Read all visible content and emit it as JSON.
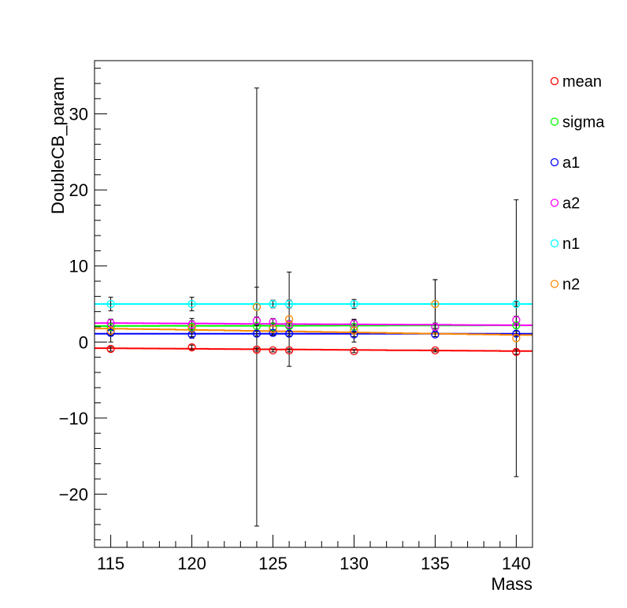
{
  "chart_data": {
    "type": "scatter",
    "title": "",
    "xlabel": "Mass",
    "ylabel": "DoubleCB_param",
    "xlim": [
      114,
      141
    ],
    "ylim": [
      -27,
      37
    ],
    "x_ticks": [
      115,
      120,
      125,
      130,
      135,
      140
    ],
    "y_ticks": [
      -20,
      -10,
      0,
      10,
      20,
      30
    ],
    "legend": {
      "placement": "right"
    },
    "masses": [
      115,
      120,
      124,
      125,
      126,
      130,
      135,
      140
    ],
    "series": [
      {
        "name": "mean",
        "color": "#ff0000",
        "points": [
          {
            "x": 115,
            "y": -0.9,
            "err": 0.3
          },
          {
            "x": 120,
            "y": -0.7,
            "err": 0.3
          },
          {
            "x": 124,
            "y": -1.0,
            "err": 0.2
          },
          {
            "x": 125,
            "y": -1.1,
            "err": 0.2
          },
          {
            "x": 126,
            "y": -1.1,
            "err": 0.2
          },
          {
            "x": 130,
            "y": -1.2,
            "err": 0.2
          },
          {
            "x": 135,
            "y": -1.1,
            "err": 0.2
          },
          {
            "x": 140,
            "y": -1.3,
            "err": 0.3
          }
        ],
        "fit": [
          [
            114,
            -0.8
          ],
          [
            141,
            -1.2
          ]
        ]
      },
      {
        "name": "sigma",
        "color": "#00ff00",
        "points": [
          {
            "x": 115,
            "y": 2.0,
            "err": 0.4
          },
          {
            "x": 120,
            "y": 2.0,
            "err": 0.4
          },
          {
            "x": 124,
            "y": 2.1,
            "err": 0.4
          },
          {
            "x": 125,
            "y": 2.0,
            "err": 0.4
          },
          {
            "x": 126,
            "y": 2.1,
            "err": 0.4
          },
          {
            "x": 130,
            "y": 2.0,
            "err": 0.4
          },
          {
            "x": 135,
            "y": 2.0,
            "err": 0.4
          },
          {
            "x": 140,
            "y": 2.2,
            "err": 0.4
          }
        ],
        "fit": [
          [
            114,
            2.1
          ],
          [
            141,
            2.2
          ]
        ]
      },
      {
        "name": "a1",
        "color": "#0000ff",
        "points": [
          {
            "x": 115,
            "y": 1.2,
            "err": 0.3
          },
          {
            "x": 120,
            "y": 1.0,
            "err": 0.3
          },
          {
            "x": 124,
            "y": 1.1,
            "err": 0.3
          },
          {
            "x": 125,
            "y": 1.2,
            "err": 0.3
          },
          {
            "x": 126,
            "y": 1.1,
            "err": 0.3
          },
          {
            "x": 130,
            "y": 1.0,
            "err": 0.3
          },
          {
            "x": 135,
            "y": 1.0,
            "err": 0.3
          },
          {
            "x": 140,
            "y": 1.1,
            "err": 0.3
          }
        ],
        "fit": [
          [
            114,
            1.1
          ],
          [
            141,
            1.1
          ]
        ]
      },
      {
        "name": "a2",
        "color": "#ff00ff",
        "points": [
          {
            "x": 115,
            "y": 2.5,
            "err": 0.5
          },
          {
            "x": 120,
            "y": 2.3,
            "err": 0.5
          },
          {
            "x": 124,
            "y": 2.8,
            "err": 0.5
          },
          {
            "x": 125,
            "y": 2.6,
            "err": 0.5
          },
          {
            "x": 126,
            "y": 2.3,
            "err": 0.5
          },
          {
            "x": 130,
            "y": 2.4,
            "err": 0.5
          },
          {
            "x": 135,
            "y": 2.0,
            "err": 0.5
          },
          {
            "x": 140,
            "y": 2.9,
            "err": 0.5
          }
        ],
        "fit": [
          [
            114,
            2.5
          ],
          [
            141,
            2.2
          ]
        ]
      },
      {
        "name": "n1",
        "color": "#00ffff",
        "points": [
          {
            "x": 115,
            "y": 5.0,
            "err": 0.9
          },
          {
            "x": 120,
            "y": 5.0,
            "err": 0.9
          },
          {
            "x": 124,
            "y": 4.7,
            "err": 2.5
          },
          {
            "x": 125,
            "y": 5.0,
            "err": 0.5
          },
          {
            "x": 126,
            "y": 5.0,
            "err": 0.5
          },
          {
            "x": 130,
            "y": 5.0,
            "err": 0.6
          },
          {
            "x": 135,
            "y": 5.0,
            "err": 3.2
          },
          {
            "x": 140,
            "y": 5.0,
            "err": 0.3
          }
        ],
        "fit": [
          [
            114,
            5.0
          ],
          [
            141,
            5.0
          ]
        ]
      },
      {
        "name": "n2",
        "color": "#ff8800",
        "points": [
          {
            "x": 115,
            "y": 1.5,
            "err": 1.5
          },
          {
            "x": 120,
            "y": 1.8,
            "err": 1.3
          },
          {
            "x": 124,
            "y": 4.6,
            "err": 28.8
          },
          {
            "x": 125,
            "y": 1.7,
            "err": 0.8
          },
          {
            "x": 126,
            "y": 3.0,
            "err": 6.2
          },
          {
            "x": 130,
            "y": 1.5,
            "err": 1.5
          },
          {
            "x": 135,
            "y": 5.0,
            "err": 3.2
          },
          {
            "x": 140,
            "y": 0.5,
            "err": 18.2
          }
        ],
        "fit": [
          [
            114,
            1.8
          ],
          [
            141,
            0.9
          ]
        ]
      }
    ]
  }
}
